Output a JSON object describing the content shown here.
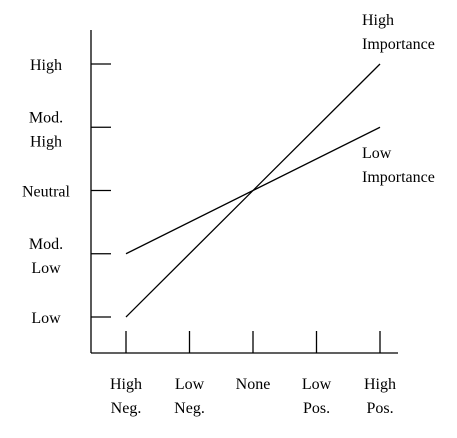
{
  "chart_data": {
    "type": "line",
    "title": "",
    "xlabel": "",
    "ylabel": "",
    "categories": [
      [
        "High",
        "Neg."
      ],
      [
        "Low",
        "Neg."
      ],
      [
        "None",
        ""
      ],
      [
        "Low",
        "Pos."
      ],
      [
        "High",
        "Pos."
      ]
    ],
    "y_levels": [
      [
        "Low",
        ""
      ],
      [
        "Mod.",
        "Low"
      ],
      [
        "Neutral",
        ""
      ],
      [
        "Mod.",
        "High"
      ],
      [
        "High",
        ""
      ]
    ],
    "ylim": [
      0,
      4
    ],
    "x": [
      0,
      4
    ],
    "grid": false,
    "legend": "none",
    "series": [
      {
        "name": [
          "High",
          "Importance"
        ],
        "values": [
          0,
          4
        ],
        "color": "#000000"
      },
      {
        "name": [
          "Low",
          "Importance"
        ],
        "values": [
          1,
          3
        ],
        "color": "#000000"
      }
    ]
  }
}
